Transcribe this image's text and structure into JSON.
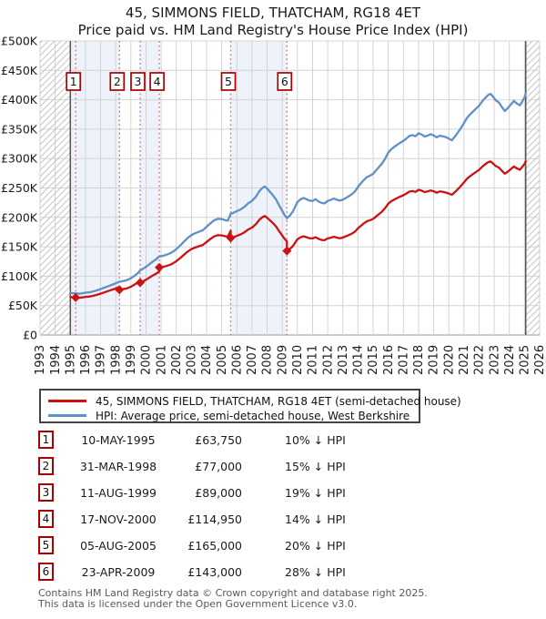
{
  "title": "45, SIMMONS FIELD, THATCHAM, RG18 4ET",
  "subtitle": "Price paid vs. HM Land Registry's House Price Index (HPI)",
  "legend": {
    "items": [
      {
        "label": "45, SIMMONS FIELD, THATCHAM, RG18 4ET (semi-detached house)",
        "color": "#cc1111"
      },
      {
        "label": "HPI: Average price, semi-detached house, West Berkshire",
        "color": "#6090c8"
      }
    ]
  },
  "table": {
    "rows": [
      {
        "n": "1",
        "date": "10-MAY-1995",
        "price": "£63,750",
        "hpi_diff": "10% ↓ HPI"
      },
      {
        "n": "2",
        "date": "31-MAR-1998",
        "price": "£77,000",
        "hpi_diff": "15% ↓ HPI"
      },
      {
        "n": "3",
        "date": "11-AUG-1999",
        "price": "£89,000",
        "hpi_diff": "19% ↓ HPI"
      },
      {
        "n": "4",
        "date": "17-NOV-2000",
        "price": "£114,950",
        "hpi_diff": "14% ↓ HPI"
      },
      {
        "n": "5",
        "date": "05-AUG-2005",
        "price": "£165,000",
        "hpi_diff": "20% ↓ HPI"
      },
      {
        "n": "6",
        "date": "23-APR-2009",
        "price": "£143,000",
        "hpi_diff": "28% ↓ HPI"
      }
    ]
  },
  "footer": {
    "line1": "Contains HM Land Registry data © Crown copyright and database right 2025.",
    "line2": "This data is licensed under the Open Government Licence v3.0."
  },
  "chart_data": {
    "type": "line",
    "title": "Price paid vs. HM Land Registry's House Price Index (HPI)",
    "x_range": [
      1993,
      2026
    ],
    "y_range_gbp": [
      0,
      500000
    ],
    "grid": true,
    "y_tick_labels": [
      "£0",
      "£50K",
      "£100K",
      "£150K",
      "£200K",
      "£250K",
      "£300K",
      "£350K",
      "£400K",
      "£450K",
      "£500K"
    ],
    "x_tick_labels": [
      "1993",
      "1994",
      "1995",
      "1996",
      "1997",
      "1998",
      "1999",
      "2000",
      "2001",
      "2002",
      "2003",
      "2004",
      "2005",
      "2006",
      "2007",
      "2008",
      "2009",
      "2010",
      "2011",
      "2012",
      "2013",
      "2014",
      "2015",
      "2016",
      "2017",
      "2018",
      "2019",
      "2020",
      "2021",
      "2022",
      "2023",
      "2024",
      "2025",
      "2026"
    ],
    "colors": {
      "price_line": "#cc1111",
      "hpi_line": "#6090c8",
      "sale_marker_line": "#e57373",
      "ownership_band": "#edf2fb",
      "grid_line": "#d4d4d4",
      "axis_line": "#999999",
      "hatch": "#c4c4c4",
      "data_boundary": "#555555",
      "number_box_border": "#aa0000"
    },
    "sales": [
      {
        "n": 1,
        "date": "10-MAY-1995",
        "year": 1995.354,
        "price_gbp": 63750,
        "price_k": 63.75,
        "pct_below_hpi": 10
      },
      {
        "n": 2,
        "date": "31-MAR-1998",
        "year": 1998.246,
        "price_gbp": 77000,
        "price_k": 77.0,
        "pct_below_hpi": 15
      },
      {
        "n": 3,
        "date": "11-AUG-1999",
        "year": 1999.611,
        "price_gbp": 89000,
        "price_k": 89.0,
        "pct_below_hpi": 19
      },
      {
        "n": 4,
        "date": "17-NOV-2000",
        "year": 2000.879,
        "price_gbp": 114950,
        "price_k": 114.95,
        "pct_below_hpi": 14
      },
      {
        "n": 5,
        "date": "05-AUG-2005",
        "year": 2005.592,
        "price_gbp": 165000,
        "price_k": 165.0,
        "pct_below_hpi": 20
      },
      {
        "n": 6,
        "date": "23-APR-2009",
        "year": 2009.31,
        "price_gbp": 143000,
        "price_k": 143.0,
        "pct_below_hpi": 28
      }
    ],
    "ownership_bands": [
      [
        1995.0,
        1998.246
      ],
      [
        1999.611,
        2000.879
      ],
      [
        2005.592,
        2009.31
      ]
    ],
    "no_data_hatch": [
      [
        1993.0,
        1995.0
      ],
      [
        2025.08,
        2026.0
      ]
    ],
    "series": [
      {
        "name": "45, SIMMONS FIELD, THATCHAM, RG18 4ET (semi-detached house)",
        "color": "#cc1111",
        "derivation": "price paid at each sale, scaled by HPI between sales"
      },
      {
        "name": "HPI: Average price, semi-detached house, West Berkshire",
        "color": "#6090c8",
        "points_year_gbp_k": [
          [
            1995.0,
            71.5
          ],
          [
            1995.18,
            71.0
          ],
          [
            1995.354,
            70.8
          ],
          [
            1995.6,
            70.3
          ],
          [
            1995.8,
            71.0
          ],
          [
            1996.0,
            72.0
          ],
          [
            1996.25,
            72.6
          ],
          [
            1996.5,
            74.0
          ],
          [
            1996.75,
            75.8
          ],
          [
            1997.0,
            78.0
          ],
          [
            1997.25,
            80.5
          ],
          [
            1997.5,
            83.0
          ],
          [
            1997.75,
            85.5
          ],
          [
            1998.0,
            88.0
          ],
          [
            1998.246,
            90.6
          ],
          [
            1998.5,
            91.8
          ],
          [
            1998.75,
            93.5
          ],
          [
            1999.0,
            96.5
          ],
          [
            1999.25,
            101.0
          ],
          [
            1999.45,
            105.0
          ],
          [
            1999.611,
            109.9
          ],
          [
            1999.8,
            112.5
          ],
          [
            2000.0,
            116.0
          ],
          [
            2000.2,
            120.0
          ],
          [
            2000.45,
            125.0
          ],
          [
            2000.65,
            128.5
          ],
          [
            2000.879,
            133.7
          ],
          [
            2001.1,
            134.5
          ],
          [
            2001.35,
            136.5
          ],
          [
            2001.6,
            139.0
          ],
          [
            2001.8,
            142.0
          ],
          [
            2002.0,
            146.0
          ],
          [
            2002.25,
            152.0
          ],
          [
            2002.5,
            158.5
          ],
          [
            2002.75,
            165.0
          ],
          [
            2003.0,
            170.0
          ],
          [
            2003.25,
            173.0
          ],
          [
            2003.5,
            175.5
          ],
          [
            2003.75,
            178.0
          ],
          [
            2004.0,
            184.0
          ],
          [
            2004.25,
            190.0
          ],
          [
            2004.5,
            195.0
          ],
          [
            2004.75,
            197.5
          ],
          [
            2005.0,
            197.0
          ],
          [
            2005.2,
            195.5
          ],
          [
            2005.4,
            194.5
          ],
          [
            2005.592,
            206.0
          ],
          [
            2005.8,
            208.0
          ],
          [
            2006.0,
            210.5
          ],
          [
            2006.25,
            213.5
          ],
          [
            2006.5,
            218.0
          ],
          [
            2006.75,
            224.0
          ],
          [
            2007.0,
            228.0
          ],
          [
            2007.25,
            235.0
          ],
          [
            2007.5,
            245.0
          ],
          [
            2007.7,
            250.5
          ],
          [
            2007.85,
            252.5
          ],
          [
            2008.0,
            249.0
          ],
          [
            2008.2,
            243.0
          ],
          [
            2008.4,
            237.0
          ],
          [
            2008.6,
            230.0
          ],
          [
            2008.8,
            220.0
          ],
          [
            2009.0,
            211.0
          ],
          [
            2009.15,
            204.0
          ],
          [
            2009.31,
            198.6
          ],
          [
            2009.5,
            203.0
          ],
          [
            2009.7,
            210.0
          ],
          [
            2009.85,
            218.0
          ],
          [
            2010.0,
            226.0
          ],
          [
            2010.2,
            230.5
          ],
          [
            2010.4,
            233.0
          ],
          [
            2010.6,
            231.0
          ],
          [
            2010.8,
            228.5
          ],
          [
            2011.0,
            228.0
          ],
          [
            2011.2,
            231.0
          ],
          [
            2011.4,
            227.0
          ],
          [
            2011.6,
            224.5
          ],
          [
            2011.8,
            224.0
          ],
          [
            2012.0,
            228.0
          ],
          [
            2012.2,
            229.5
          ],
          [
            2012.4,
            232.0
          ],
          [
            2012.6,
            230.0
          ],
          [
            2012.8,
            228.5
          ],
          [
            2013.0,
            230.0
          ],
          [
            2013.2,
            233.0
          ],
          [
            2013.4,
            236.0
          ],
          [
            2013.6,
            239.5
          ],
          [
            2013.8,
            244.0
          ],
          [
            2014.0,
            252.0
          ],
          [
            2014.2,
            258.0
          ],
          [
            2014.4,
            264.0
          ],
          [
            2014.6,
            268.5
          ],
          [
            2014.8,
            271.0
          ],
          [
            2015.0,
            274.0
          ],
          [
            2015.2,
            280.0
          ],
          [
            2015.4,
            286.0
          ],
          [
            2015.6,
            292.0
          ],
          [
            2015.8,
            300.0
          ],
          [
            2016.0,
            310.0
          ],
          [
            2016.2,
            316.0
          ],
          [
            2016.4,
            320.0
          ],
          [
            2016.6,
            323.5
          ],
          [
            2016.8,
            327.0
          ],
          [
            2017.0,
            330.0
          ],
          [
            2017.2,
            334.0
          ],
          [
            2017.4,
            338.5
          ],
          [
            2017.6,
            340.0
          ],
          [
            2017.8,
            338.0
          ],
          [
            2018.0,
            343.0
          ],
          [
            2018.2,
            341.0
          ],
          [
            2018.4,
            337.5
          ],
          [
            2018.6,
            339.0
          ],
          [
            2018.8,
            341.5
          ],
          [
            2019.0,
            339.5
          ],
          [
            2019.2,
            336.0
          ],
          [
            2019.4,
            339.0
          ],
          [
            2019.6,
            338.0
          ],
          [
            2019.8,
            336.5
          ],
          [
            2020.0,
            334.0
          ],
          [
            2020.2,
            331.0
          ],
          [
            2020.45,
            339.0
          ],
          [
            2020.7,
            348.0
          ],
          [
            2021.0,
            360.0
          ],
          [
            2021.2,
            369.0
          ],
          [
            2021.4,
            375.0
          ],
          [
            2021.6,
            380.0
          ],
          [
            2021.8,
            385.0
          ],
          [
            2022.0,
            390.0
          ],
          [
            2022.2,
            397.0
          ],
          [
            2022.4,
            403.0
          ],
          [
            2022.6,
            408.0
          ],
          [
            2022.75,
            410.0
          ],
          [
            2022.9,
            406.0
          ],
          [
            2023.1,
            399.0
          ],
          [
            2023.3,
            395.5
          ],
          [
            2023.5,
            388.0
          ],
          [
            2023.7,
            381.0
          ],
          [
            2023.9,
            386.0
          ],
          [
            2024.1,
            392.0
          ],
          [
            2024.3,
            398.0
          ],
          [
            2024.5,
            393.5
          ],
          [
            2024.7,
            390.5
          ],
          [
            2024.85,
            397.0
          ],
          [
            2025.0,
            404.0
          ],
          [
            2025.08,
            410.0
          ]
        ]
      }
    ]
  }
}
